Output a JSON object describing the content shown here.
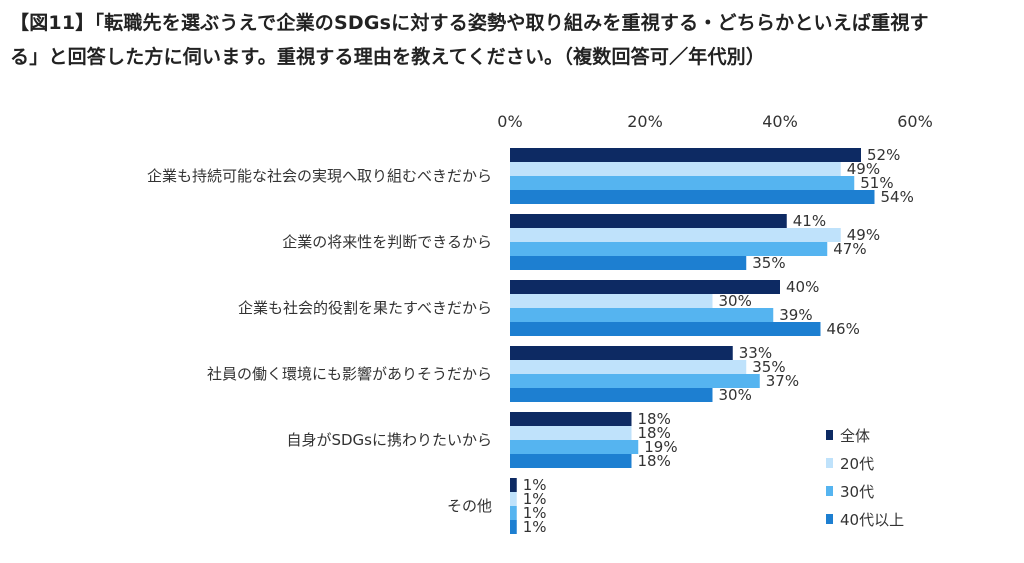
{
  "title": {
    "line1": "【図11】「転職先を選ぶうえで企業のSDGsに対する姿勢や取り組みを重視する・どちらかといえば重視す",
    "line2": "る」と回答した方に伺います。重視する理由を教えてください。（複数回答可／年代別）"
  },
  "colors": {
    "全体": "#0d2a63",
    "20代": "#bfe2fb",
    "30代": "#55b4f0",
    "40代以上": "#1d7fd1"
  },
  "chart_data": {
    "type": "bar",
    "orientation": "horizontal",
    "xlim": [
      0,
      60
    ],
    "ticks": [
      "0%",
      "20%",
      "40%",
      "60%"
    ],
    "tick_values": [
      0,
      20,
      40,
      60
    ],
    "categories": [
      "企業も持続可能な社会の実現へ取り組むべきだから",
      "企業の将来性を判断できるから",
      "企業も社会的役割を果たすべきだから",
      "社員の働く環境にも影響がありそうだから",
      "自身がSDGsに携わりたいから",
      "その他"
    ],
    "series": [
      {
        "name": "全体",
        "values": [
          52,
          41,
          40,
          33,
          18,
          1
        ],
        "labels": [
          "52%",
          "41%",
          "40%",
          "33%",
          "18%",
          "1%"
        ]
      },
      {
        "name": "20代",
        "values": [
          49,
          49,
          30,
          35,
          18,
          1
        ],
        "labels": [
          "49%",
          "49%",
          "30%",
          "35%",
          "18%",
          "1%"
        ]
      },
      {
        "name": "30代",
        "values": [
          51,
          47,
          39,
          37,
          19,
          1
        ],
        "labels": [
          "51%",
          "47%",
          "39%",
          "37%",
          "19%",
          "1%"
        ]
      },
      {
        "name": "40代以上",
        "values": [
          54,
          35,
          46,
          30,
          18,
          1
        ],
        "labels": [
          "54%",
          "35%",
          "46%",
          "30%",
          "18%",
          "1%"
        ]
      }
    ],
    "legend_position": "right"
  }
}
